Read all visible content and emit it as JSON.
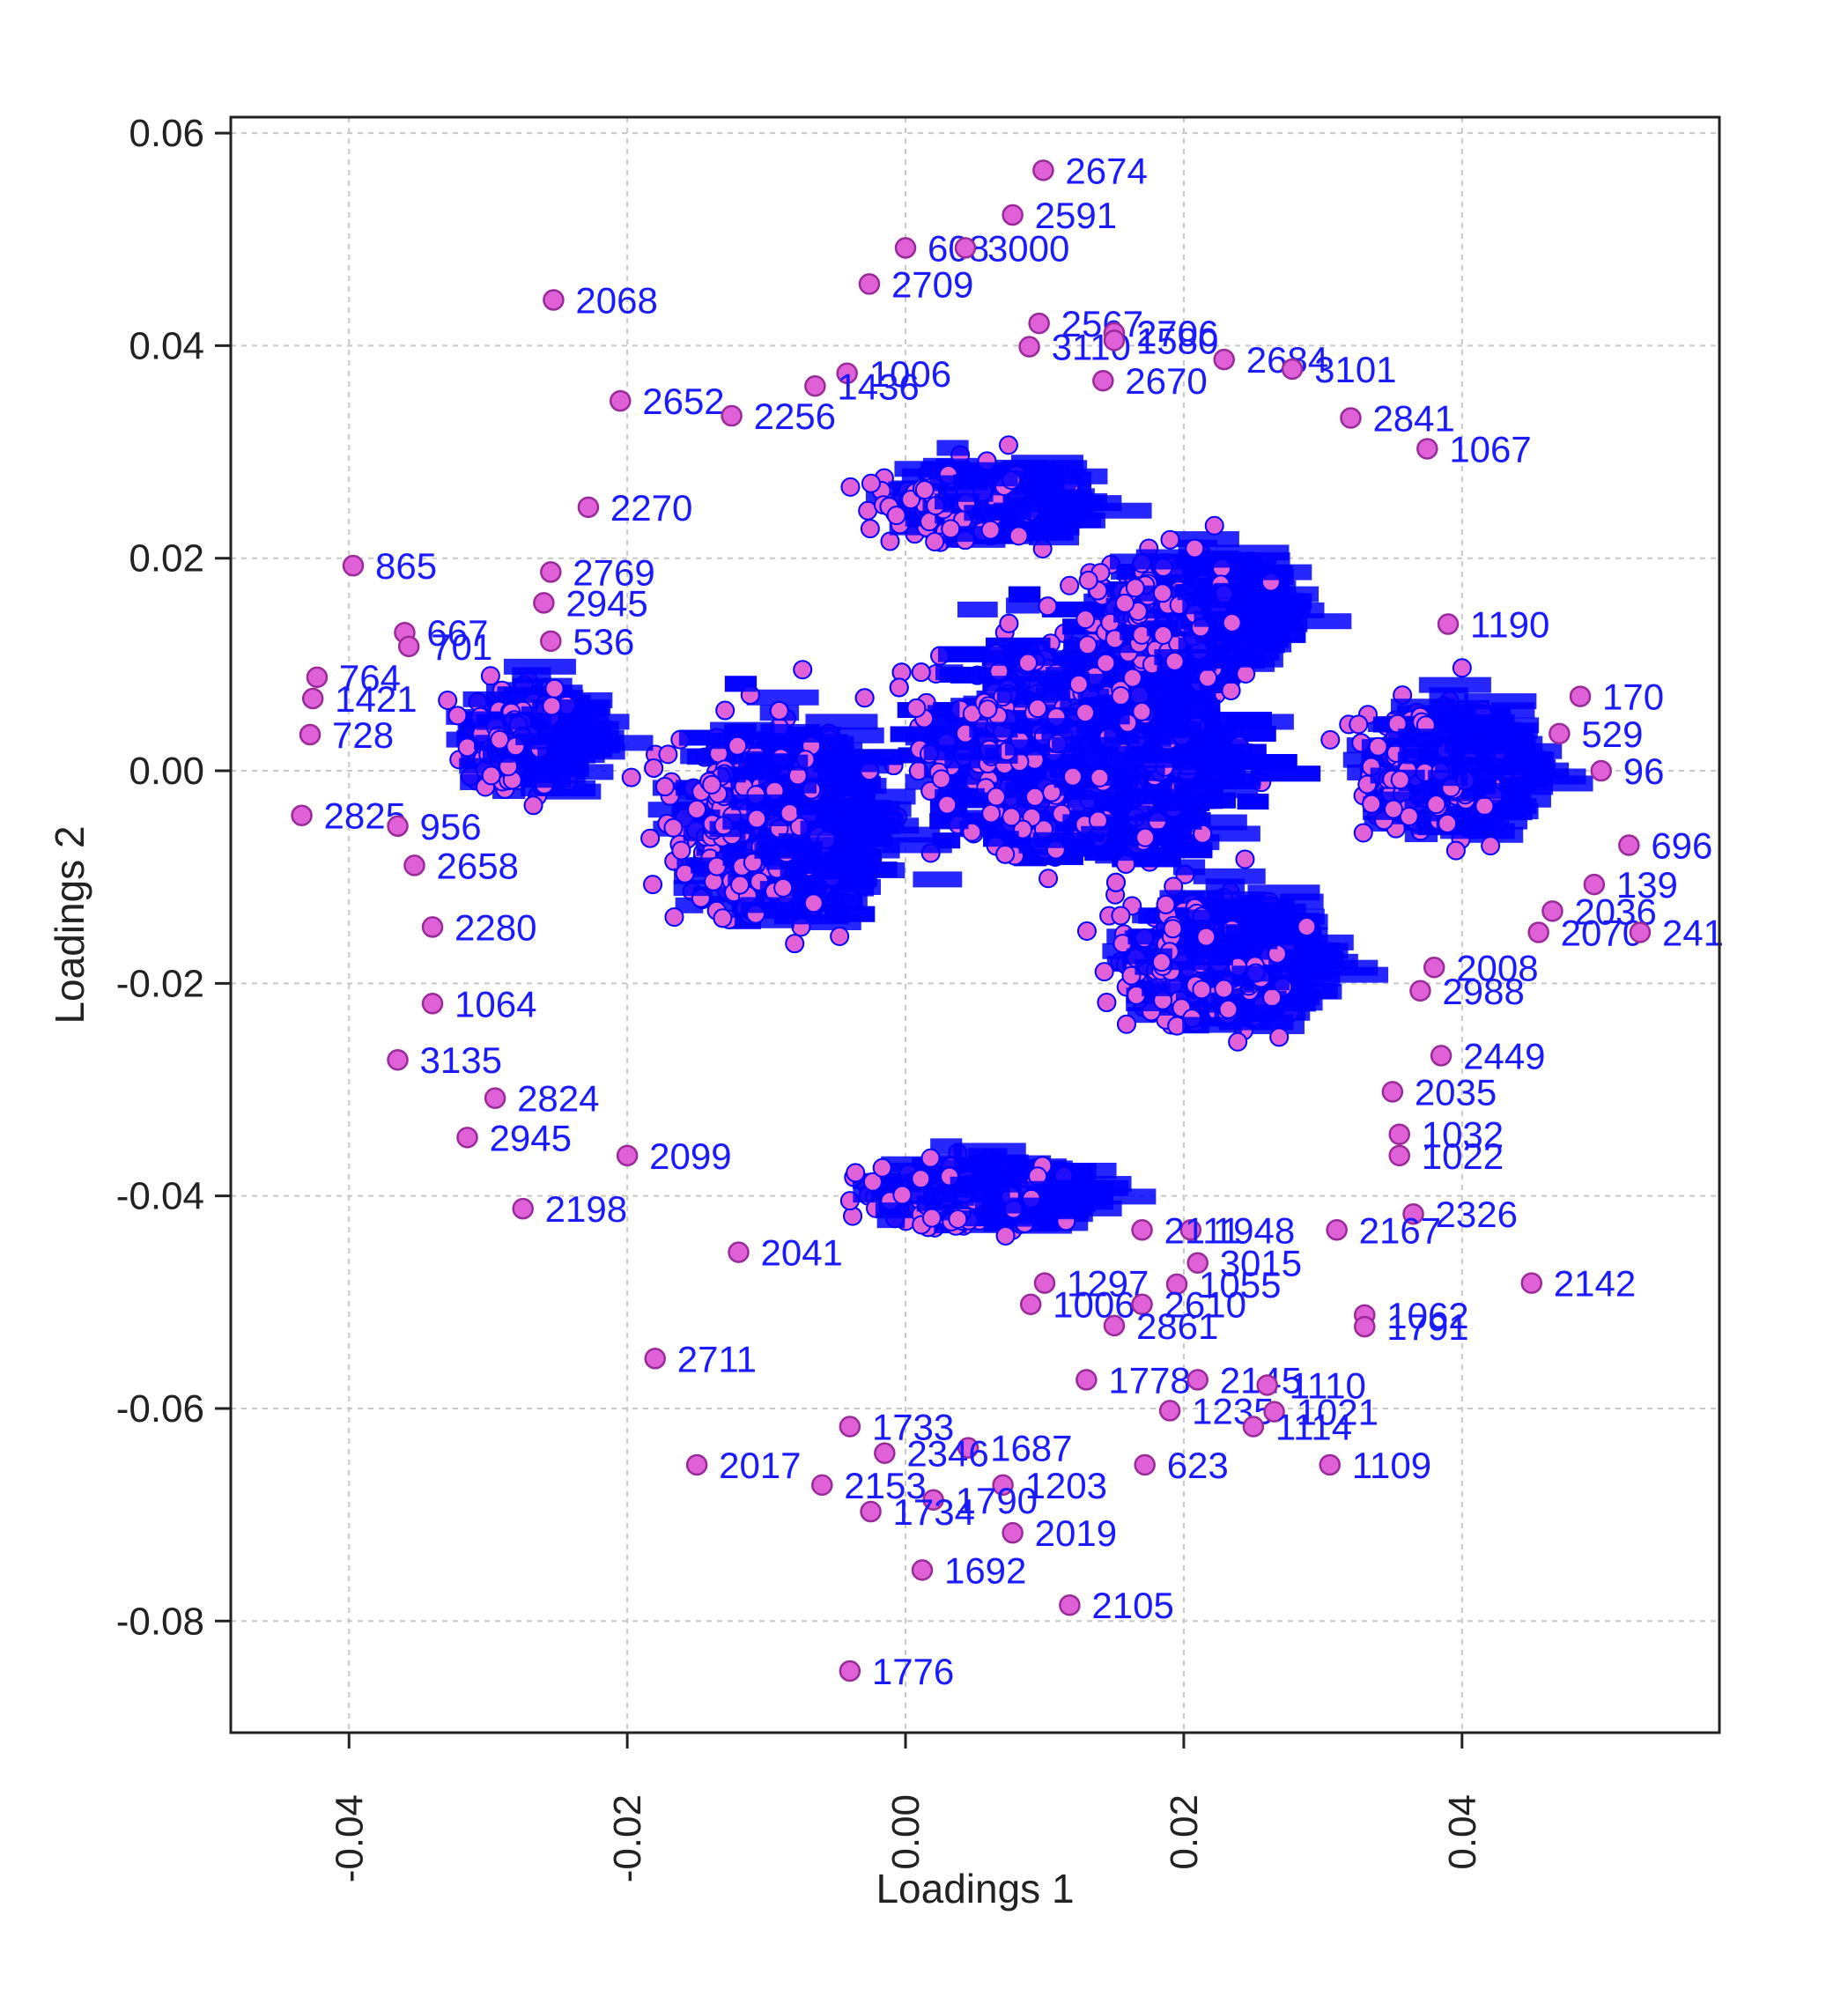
{
  "chart_data": {
    "type": "scatter",
    "title": "",
    "xlabel": "Loadings 1",
    "ylabel": "Loadings 2",
    "xlim": [
      -0.0485,
      0.0585
    ],
    "ylim": [
      -0.0905,
      0.0615
    ],
    "xticks": [
      -0.04,
      -0.02,
      0.0,
      0.02,
      0.04
    ],
    "xtick_labels": [
      "-0.04",
      "-0.02",
      "0.00",
      "0.02",
      "0.04"
    ],
    "yticks": [
      -0.08,
      -0.06,
      -0.04,
      -0.02,
      0.0,
      0.02,
      0.04,
      0.06
    ],
    "ytick_labels": [
      "-0.08",
      "-0.06",
      "-0.04",
      "-0.02",
      "0.00",
      "0.02",
      "0.04",
      "0.06"
    ],
    "grid": true,
    "point_fill": "#e060d8",
    "point_stroke": "#9a2a9a",
    "label_color": "#1a1aff",
    "dense_cluster_color": "#0000ff",
    "points": [
      {
        "label": "2674",
        "x": 0.0099,
        "y": 0.0565
      },
      {
        "label": "2591",
        "x": 0.0077,
        "y": 0.0523
      },
      {
        "label": "608",
        "x": 0.0,
        "y": 0.0492
      },
      {
        "label": "3000",
        "x": 0.0043,
        "y": 0.0492
      },
      {
        "label": "2709",
        "x": -0.0026,
        "y": 0.0458
      },
      {
        "label": "2068",
        "x": -0.0253,
        "y": 0.0443
      },
      {
        "label": "2567",
        "x": 0.0096,
        "y": 0.0421
      },
      {
        "label": "2706",
        "x": 0.015,
        "y": 0.0412
      },
      {
        "label": "3110",
        "x": 0.0089,
        "y": 0.0399
      },
      {
        "label": "1580",
        "x": 0.015,
        "y": 0.0405
      },
      {
        "label": "1006",
        "x": -0.0042,
        "y": 0.0374
      },
      {
        "label": "1436",
        "x": -0.0065,
        "y": 0.0362
      },
      {
        "label": "2652",
        "x": -0.0205,
        "y": 0.0348
      },
      {
        "label": "2256",
        "x": -0.0125,
        "y": 0.0334
      },
      {
        "label": "2684",
        "x": 0.0229,
        "y": 0.0387
      },
      {
        "label": "3101",
        "x": 0.0278,
        "y": 0.0378
      },
      {
        "label": "2670",
        "x": 0.0142,
        "y": 0.0367
      },
      {
        "label": "2841",
        "x": 0.032,
        "y": 0.0332
      },
      {
        "label": "1067",
        "x": 0.0375,
        "y": 0.0303
      },
      {
        "label": "2270",
        "x": -0.0228,
        "y": 0.0248
      },
      {
        "label": "865",
        "x": -0.0397,
        "y": 0.0193
      },
      {
        "label": "2769",
        "x": -0.0255,
        "y": 0.0187
      },
      {
        "label": "2945",
        "x": -0.026,
        "y": 0.0158
      },
      {
        "label": "667",
        "x": -0.036,
        "y": 0.013
      },
      {
        "label": "701",
        "x": -0.0357,
        "y": 0.0117
      },
      {
        "label": "536",
        "x": -0.0255,
        "y": 0.0122
      },
      {
        "label": "764",
        "x": -0.0423,
        "y": 0.0088
      },
      {
        "label": "1421",
        "x": -0.0426,
        "y": 0.0068
      },
      {
        "label": "728",
        "x": -0.0428,
        "y": 0.0034
      },
      {
        "label": "2825",
        "x": -0.0434,
        "y": -0.0042
      },
      {
        "label": "956",
        "x": -0.0365,
        "y": -0.0052
      },
      {
        "label": "2658",
        "x": -0.0353,
        "y": -0.0089
      },
      {
        "label": "2280",
        "x": -0.034,
        "y": -0.0147
      },
      {
        "label": "1064",
        "x": -0.034,
        "y": -0.0219
      },
      {
        "label": "3135",
        "x": -0.0365,
        "y": -0.0272
      },
      {
        "label": "2824",
        "x": -0.0295,
        "y": -0.0308
      },
      {
        "label": "2945",
        "x": -0.0315,
        "y": -0.0345
      },
      {
        "label": "2198",
        "x": -0.0275,
        "y": -0.0412
      },
      {
        "label": "2099",
        "x": -0.02,
        "y": -0.0362
      },
      {
        "label": "1190",
        "x": 0.039,
        "y": 0.0138
      },
      {
        "label": "170",
        "x": 0.0485,
        "y": 0.007
      },
      {
        "label": "529",
        "x": 0.047,
        "y": 0.0035
      },
      {
        "label": "96",
        "x": 0.05,
        "y": 0.0
      },
      {
        "label": "696",
        "x": 0.052,
        "y": -0.007
      },
      {
        "label": "139",
        "x": 0.0495,
        "y": -0.0107
      },
      {
        "label": "2036",
        "x": 0.0465,
        "y": -0.0132
      },
      {
        "label": "2070",
        "x": 0.0455,
        "y": -0.0152
      },
      {
        "label": "241",
        "x": 0.0528,
        "y": -0.0152
      },
      {
        "label": "2008",
        "x": 0.038,
        "y": -0.0185
      },
      {
        "label": "2988",
        "x": 0.037,
        "y": -0.0207
      },
      {
        "label": "2449",
        "x": 0.0385,
        "y": -0.0268
      },
      {
        "label": "2035",
        "x": 0.035,
        "y": -0.0302
      },
      {
        "label": "1032",
        "x": 0.0355,
        "y": -0.0342
      },
      {
        "label": "1022",
        "x": 0.0355,
        "y": -0.0362
      },
      {
        "label": "2326",
        "x": 0.0365,
        "y": -0.0417
      },
      {
        "label": "2167",
        "x": 0.031,
        "y": -0.0432
      },
      {
        "label": "2142",
        "x": 0.045,
        "y": -0.0482
      },
      {
        "label": "1062",
        "x": 0.033,
        "y": -0.0512
      },
      {
        "label": "1791",
        "x": 0.033,
        "y": -0.0523
      },
      {
        "label": "1948",
        "x": 0.0205,
        "y": -0.0432
      },
      {
        "label": "2111",
        "x": 0.017,
        "y": -0.0432
      },
      {
        "label": "3015",
        "x": 0.021,
        "y": -0.0463
      },
      {
        "label": "1055",
        "x": 0.0195,
        "y": -0.0483
      },
      {
        "label": "1297",
        "x": 0.01,
        "y": -0.0482
      },
      {
        "label": "1006",
        "x": 0.009,
        "y": -0.0502
      },
      {
        "label": "2610",
        "x": 0.017,
        "y": -0.0502
      },
      {
        "label": "2861",
        "x": 0.015,
        "y": -0.0522
      },
      {
        "label": "1778",
        "x": 0.013,
        "y": -0.0573
      },
      {
        "label": "2145",
        "x": 0.021,
        "y": -0.0573
      },
      {
        "label": "1110",
        "x": 0.026,
        "y": -0.0578
      },
      {
        "label": "1235",
        "x": 0.019,
        "y": -0.0602
      },
      {
        "label": "1021",
        "x": 0.0265,
        "y": -0.0603
      },
      {
        "label": "1114",
        "x": 0.025,
        "y": -0.0617
      },
      {
        "label": "1109",
        "x": 0.0305,
        "y": -0.0653
      },
      {
        "label": "623",
        "x": 0.0172,
        "y": -0.0653
      },
      {
        "label": "1687",
        "x": 0.0045,
        "y": -0.0637
      },
      {
        "label": "2346",
        "x": -0.0015,
        "y": -0.0642
      },
      {
        "label": "1203",
        "x": 0.007,
        "y": -0.0672
      },
      {
        "label": "2153",
        "x": -0.006,
        "y": -0.0672
      },
      {
        "label": "1790",
        "x": 0.002,
        "y": -0.0686
      },
      {
        "label": "1734",
        "x": -0.0025,
        "y": -0.0697
      },
      {
        "label": "2019",
        "x": 0.0077,
        "y": -0.0717
      },
      {
        "label": "1692",
        "x": 0.0012,
        "y": -0.0752
      },
      {
        "label": "2105",
        "x": 0.0118,
        "y": -0.0785
      },
      {
        "label": "1776",
        "x": -0.004,
        "y": -0.0847
      },
      {
        "label": "2017",
        "x": -0.015,
        "y": -0.0653
      },
      {
        "label": "1733",
        "x": -0.004,
        "y": -0.0617
      },
      {
        "label": "2711",
        "x": -0.018,
        "y": -0.0553
      },
      {
        "label": "2041",
        "x": -0.012,
        "y": -0.0453
      }
    ]
  }
}
